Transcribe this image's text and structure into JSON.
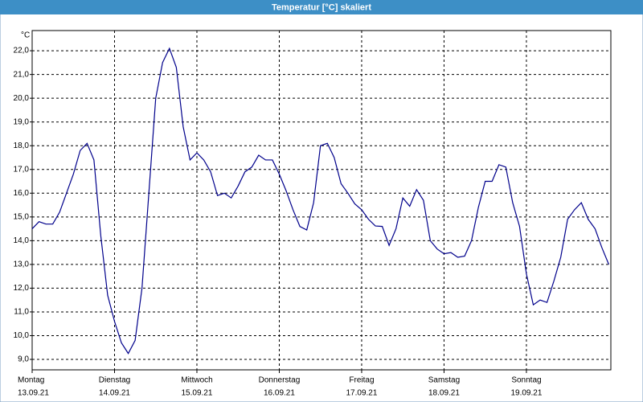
{
  "chart_data": {
    "type": "line",
    "title": "Temperatur [°C] skaliert",
    "y_unit": "°C",
    "x": [
      0,
      2,
      4,
      6,
      8,
      10,
      12,
      14,
      16,
      18,
      20,
      22,
      24,
      26,
      28,
      30,
      32,
      34,
      36,
      38,
      40,
      42,
      44,
      46,
      48,
      50,
      52,
      54,
      56,
      58,
      60,
      62,
      64,
      66,
      68,
      70,
      72,
      74,
      76,
      78,
      80,
      82,
      84,
      86,
      88,
      90,
      92,
      94,
      96,
      98,
      100,
      102,
      104,
      106,
      108,
      110,
      112,
      114,
      116,
      118,
      120,
      122,
      124,
      126,
      128,
      130,
      132,
      134,
      136,
      138,
      140,
      142,
      144,
      146,
      148,
      150,
      152,
      154,
      156,
      158,
      160,
      162,
      164,
      166,
      168
    ],
    "series": [
      {
        "name": "Temperatur",
        "color": "#00008b",
        "values": [
          14.5,
          14.8,
          14.7,
          14.7,
          15.2,
          16.0,
          16.8,
          17.8,
          18.1,
          17.4,
          14.2,
          11.7,
          10.6,
          9.7,
          9.25,
          9.8,
          12.0,
          16.0,
          20.0,
          21.5,
          22.1,
          21.3,
          18.8,
          17.4,
          17.7,
          17.4,
          16.9,
          15.9,
          16.0,
          15.8,
          16.3,
          16.9,
          17.1,
          17.6,
          17.4,
          17.4,
          16.8,
          16.1,
          15.3,
          14.6,
          14.45,
          15.6,
          18.0,
          18.1,
          17.5,
          16.4,
          16.0,
          15.55,
          15.3,
          14.9,
          14.62,
          14.6,
          13.8,
          14.5,
          15.8,
          15.45,
          16.15,
          15.7,
          14.0,
          13.65,
          13.45,
          13.5,
          13.3,
          13.35,
          14.0,
          15.4,
          16.5,
          16.5,
          17.2,
          17.1,
          15.6,
          14.6,
          12.6,
          11.3,
          11.5,
          11.4,
          12.3,
          13.3,
          14.9,
          15.3,
          15.6,
          14.9,
          14.5,
          13.7,
          13.0
        ]
      }
    ],
    "xlim": [
      0,
      168.6
    ],
    "xticks": [
      0,
      24,
      48,
      72,
      96,
      120,
      144
    ],
    "day_labels": [
      "Montag",
      "Dienstag",
      "Mittwoch",
      "Donnerstag",
      "Freitag",
      "Samstag",
      "Sonntag"
    ],
    "date_labels": [
      "13.09.21",
      "14.09.21",
      "15.09.21",
      "16.09.21",
      "17.09.21",
      "18.09.21",
      "19.09.21"
    ],
    "ylim": [
      8.56,
      22.85
    ],
    "yticks": [
      {
        "value": 9,
        "label": "9,0"
      },
      {
        "value": 10,
        "label": "10,0"
      },
      {
        "value": 11,
        "label": "11,0"
      },
      {
        "value": 12,
        "label": "12,0"
      },
      {
        "value": 13,
        "label": "13,0"
      },
      {
        "value": 14,
        "label": "14,0"
      },
      {
        "value": 15,
        "label": "15,0"
      },
      {
        "value": 16,
        "label": "16,0"
      },
      {
        "value": 17,
        "label": "17,0"
      },
      {
        "value": 18,
        "label": "18,0"
      },
      {
        "value": 19,
        "label": "19,0"
      },
      {
        "value": 20,
        "label": "20,0"
      },
      {
        "value": 21,
        "label": "21,0"
      },
      {
        "value": 22,
        "label": "22,0"
      }
    ],
    "grid": true
  }
}
